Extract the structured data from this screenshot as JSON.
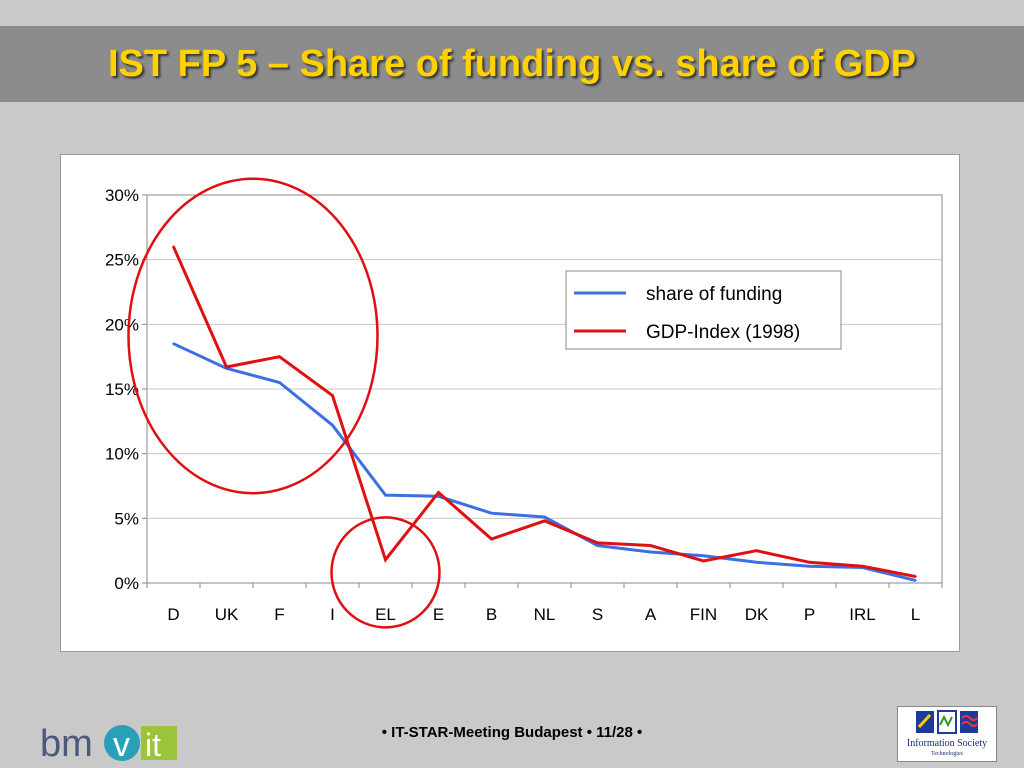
{
  "slide": {
    "title": "IST FP 5 – Share of funding vs. share of GDP",
    "footer": "• IT-STAR-Meeting Budapest • 11/28 •"
  },
  "logos": {
    "left_text_bm": "bm",
    "left_text_v": "v",
    "left_text_it": "it",
    "right_text": "Information Society",
    "right_subtext": "Technologies"
  },
  "colors": {
    "title": "#ffd200",
    "series_funding": "#3c6ee6",
    "series_gdp": "#e01010",
    "highlight_circle": "#e01010"
  },
  "chart_data": {
    "type": "line",
    "categories": [
      "D",
      "UK",
      "F",
      "I",
      "EL",
      "E",
      "B",
      "NL",
      "S",
      "A",
      "FIN",
      "DK",
      "P",
      "IRL",
      "L"
    ],
    "series": [
      {
        "name": "share of funding",
        "values": [
          18.5,
          16.6,
          15.5,
          12.2,
          6.8,
          6.7,
          5.4,
          5.1,
          2.9,
          2.4,
          2.1,
          1.6,
          1.3,
          1.2,
          0.2
        ]
      },
      {
        "name": "GDP-Index (1998)",
        "values": [
          26.0,
          16.7,
          17.5,
          14.5,
          1.8,
          7.0,
          3.4,
          4.8,
          3.1,
          2.9,
          1.7,
          2.5,
          1.6,
          1.3,
          0.5
        ]
      }
    ],
    "y_ticks": [
      "0%",
      "5%",
      "10%",
      "15%",
      "20%",
      "25%",
      "30%"
    ],
    "ylim": [
      0,
      30
    ],
    "grid": true,
    "legend": "top-right",
    "annotations": [
      {
        "type": "circle",
        "around": [
          "D",
          "UK",
          "F",
          "I"
        ]
      },
      {
        "type": "circle",
        "around": [
          "EL"
        ]
      }
    ]
  }
}
